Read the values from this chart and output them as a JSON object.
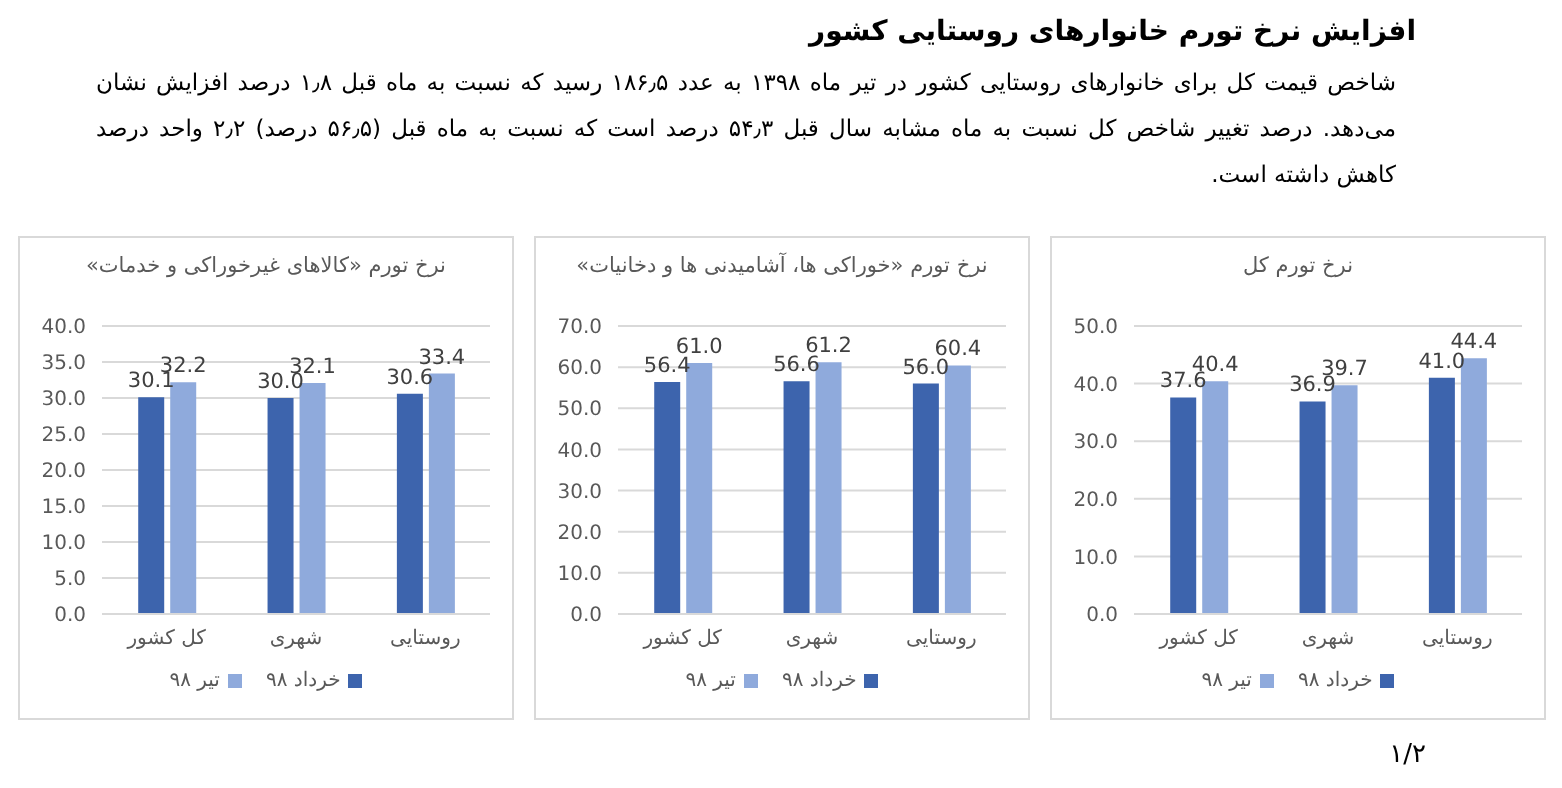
{
  "chart_data": [
    {
      "type": "bar",
      "title": "نرخ تورم کل",
      "categories": [
        "کل کشور",
        "شهری",
        "روستایی"
      ],
      "series": [
        {
          "name": "خرداد ۹۸",
          "color": "#3d64ad",
          "values": [
            37.6,
            36.9,
            41.0
          ],
          "value_labels": [
            "37.6",
            "36.9",
            "41.0"
          ]
        },
        {
          "name": "تیر ۹۸",
          "color": "#8faadc",
          "values": [
            40.4,
            39.7,
            44.4
          ],
          "value_labels": [
            "40.4",
            "39.7",
            "44.4"
          ]
        }
      ],
      "ylim": [
        0,
        50
      ],
      "yticks": [
        {
          "value": 0,
          "label": "0.0"
        },
        {
          "value": 10,
          "label": "10.0"
        },
        {
          "value": 20,
          "label": "20.0"
        },
        {
          "value": 30,
          "label": "30.0"
        },
        {
          "value": 40,
          "label": "40.0"
        },
        {
          "value": 50,
          "label": "50.0"
        }
      ],
      "grid": "y",
      "legend": "bottom",
      "annotations": [
        "افزایش نرخ تورم خانوارهای روستایی کشور",
        "شاخص قیمت کل برای خانوارهای روستایی کشور در تیر ماه ۱۳۹۸ به عدد ۱۸۶٫۵ رسید که نسبت به ماه قبل ۱٫۸ درصد افزایش نشان می‌دهد. درصد تغییر شاخص کل نسبت به ماه مشابه سال قبل ۵۴٫۳ درصد است که نسبت به ماه قبل (۵۶٫۵ درصد) ۲٫۲ واحد درصد کاهش داشته است.",
        "۱/۲"
      ]
    },
    {
      "type": "bar",
      "title": "نرخ تورم «خوراکی ها، آشامیدنی ها و دخانیات»",
      "categories": [
        "کل کشور",
        "شهری",
        "روستایی"
      ],
      "series": [
        {
          "name": "خرداد ۹۸",
          "color": "#3d64ad",
          "values": [
            56.4,
            56.6,
            56.0
          ],
          "value_labels": [
            "56.4",
            "56.6",
            "56.0"
          ]
        },
        {
          "name": "تیر ۹۸",
          "color": "#8faadc",
          "values": [
            61.0,
            61.2,
            60.4
          ],
          "value_labels": [
            "61.0",
            "61.2",
            "60.4"
          ]
        }
      ],
      "ylim": [
        0,
        70
      ],
      "yticks": [
        {
          "value": 0,
          "label": "0.0"
        },
        {
          "value": 10,
          "label": "10.0"
        },
        {
          "value": 20,
          "label": "20.0"
        },
        {
          "value": 30,
          "label": "30.0"
        },
        {
          "value": 40,
          "label": "40.0"
        },
        {
          "value": 50,
          "label": "50.0"
        },
        {
          "value": 60,
          "label": "60.0"
        },
        {
          "value": 70,
          "label": "70.0"
        }
      ],
      "grid": "y",
      "legend": "bottom"
    },
    {
      "type": "bar",
      "title": "نرخ تورم «کالاهای غیرخوراکی و خدمات»",
      "categories": [
        "کل کشور",
        "شهری",
        "روستایی"
      ],
      "series": [
        {
          "name": "خرداد ۹۸",
          "color": "#3d64ad",
          "values": [
            30.1,
            30.0,
            30.6
          ],
          "value_labels": [
            "30.1",
            "30.0",
            "30.6"
          ]
        },
        {
          "name": "تیر ۹۸",
          "color": "#8faadc",
          "values": [
            32.2,
            32.1,
            33.4
          ],
          "value_labels": [
            "32.2",
            "32.1",
            "33.4"
          ]
        }
      ],
      "ylim": [
        0,
        40
      ],
      "yticks": [
        {
          "value": 0,
          "label": "0.0"
        },
        {
          "value": 5,
          "label": "5.0"
        },
        {
          "value": 10,
          "label": "10.0"
        },
        {
          "value": 15,
          "label": "15.0"
        },
        {
          "value": 20,
          "label": "20.0"
        },
        {
          "value": 25,
          "label": "25.0"
        },
        {
          "value": 30,
          "label": "30.0"
        },
        {
          "value": 35,
          "label": "35.0"
        },
        {
          "value": 40,
          "label": "40.0"
        }
      ],
      "grid": "y",
      "legend": "bottom"
    }
  ]
}
